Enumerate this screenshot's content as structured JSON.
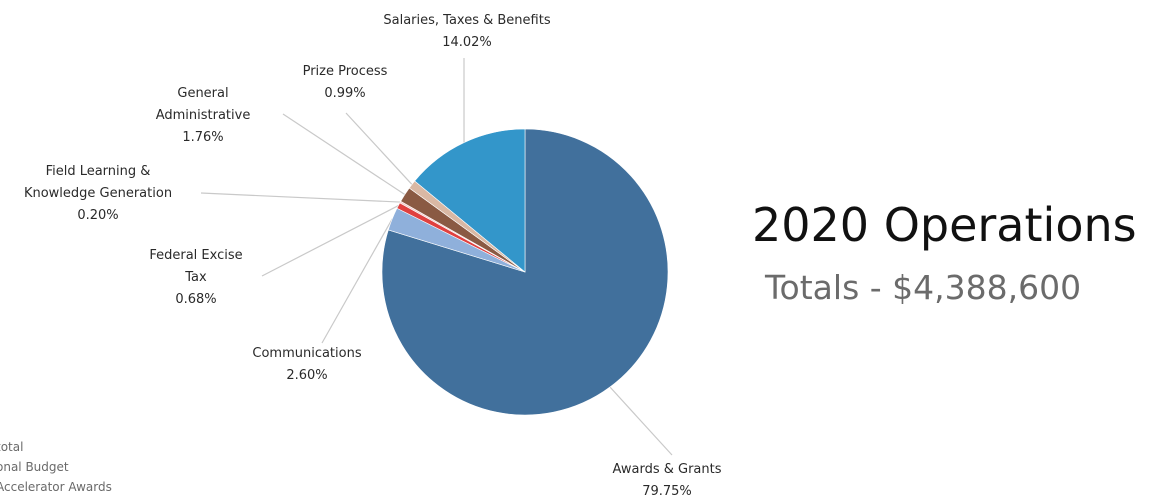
{
  "chart_data": {
    "type": "pie",
    "title": "2020 Operations",
    "subtitle": "Totals - $4,388,600",
    "slices": [
      {
        "name": "Awards & Grants",
        "percent_label": "79.75%",
        "value": 79.75,
        "color": "#41709c"
      },
      {
        "name": "Communications",
        "percent_label": "2.60%",
        "value": 2.6,
        "color": "#8fb0db"
      },
      {
        "name": "Federal Excise Tax",
        "percent_label": "0.68%",
        "value": 0.68,
        "color": "#e04140"
      },
      {
        "name": "Field Learning & Knowledge Generation",
        "percent_label": "0.20%",
        "value": 0.2,
        "color": "#f1c9c7"
      },
      {
        "name": "General Administrative",
        "percent_label": "1.76%",
        "value": 1.76,
        "color": "#8a5a43"
      },
      {
        "name": "Prize Process",
        "percent_label": "0.99%",
        "value": 0.99,
        "color": "#d9b8a4"
      },
      {
        "name": "Salaries, Taxes & Benefits",
        "percent_label": "14.02%",
        "value": 14.02,
        "color": "#3396ca"
      }
    ],
    "labels": [
      {
        "lines": [
          "Salaries, Taxes & Benefits",
          "14.02%"
        ]
      },
      {
        "lines": [
          "Prize Process",
          "0.99%"
        ]
      },
      {
        "lines": [
          "General",
          "Administrative",
          "1.76%"
        ]
      },
      {
        "lines": [
          "Field Learning &",
          "Knowledge Generation",
          "0.20%"
        ]
      },
      {
        "lines": [
          "Federal Excise",
          "Tax",
          "0.68%"
        ]
      },
      {
        "lines": [
          "Communications",
          "2.60%"
        ]
      },
      {
        "lines": [
          "Awards & Grants",
          "79.75%"
        ]
      }
    ]
  },
  "legend_fragment": {
    "items": [
      "total",
      "onal Budget",
      "Accelerator Awards"
    ]
  }
}
